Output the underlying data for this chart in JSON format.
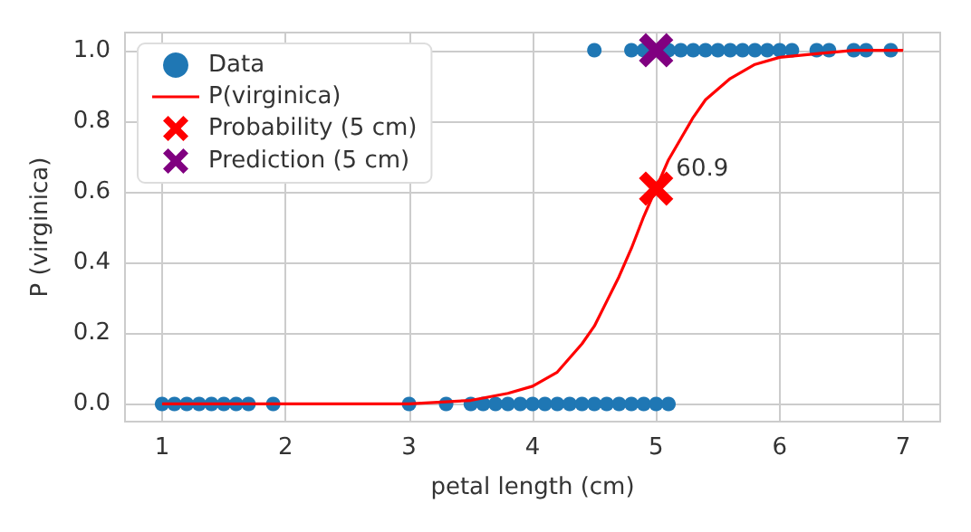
{
  "chart_data": {
    "type": "scatter",
    "xlabel": "petal length (cm)",
    "ylabel": "P (virginica)",
    "xlim": [
      0.7,
      7.3
    ],
    "ylim": [
      -0.05,
      1.05
    ],
    "xticks": [
      1,
      2,
      3,
      4,
      5,
      6,
      7
    ],
    "yticks": [
      {
        "value": 0,
        "label": "0.0"
      },
      {
        "value": 0.2,
        "label": "0.2"
      },
      {
        "value": 0.4,
        "label": "0.4"
      },
      {
        "value": 0.6,
        "label": "0.6"
      },
      {
        "value": 0.8,
        "label": "0.8"
      },
      {
        "value": 1,
        "label": "1.0"
      }
    ],
    "grid": true,
    "legend": "top left",
    "series": [
      {
        "name": "Data",
        "marker": "circle",
        "color": "#1f77b4",
        "x": [
          1.0,
          1.1,
          1.2,
          1.3,
          1.4,
          1.5,
          1.6,
          1.7,
          1.9,
          3.0,
          3.3,
          3.5,
          3.6,
          3.7,
          3.8,
          3.9,
          4.0,
          4.1,
          4.2,
          4.3,
          4.4,
          4.5,
          4.6,
          4.7,
          4.8,
          4.9,
          5.0,
          5.1,
          4.5,
          4.8,
          4.9,
          5.0,
          5.1,
          5.2,
          5.3,
          5.4,
          5.5,
          5.6,
          5.7,
          5.8,
          5.9,
          6.0,
          6.1,
          6.3,
          6.4,
          6.6,
          6.7,
          6.9
        ],
        "values": [
          0,
          0,
          0,
          0,
          0,
          0,
          0,
          0,
          0,
          0,
          0,
          0,
          0,
          0,
          0,
          0,
          0,
          0,
          0,
          0,
          0,
          0,
          0,
          0,
          0,
          0,
          0,
          0,
          1,
          1,
          1,
          null,
          1,
          1,
          1,
          1,
          1,
          1,
          1,
          1,
          1,
          1,
          1,
          1,
          1,
          1,
          1,
          1
        ]
      },
      {
        "name": "P(virginica)",
        "type": "line",
        "color": "#ff0000",
        "x": [
          1.0,
          2.0,
          3.0,
          3.5,
          3.8,
          4.0,
          4.2,
          4.4,
          4.5,
          4.6,
          4.7,
          4.8,
          4.9,
          5.0,
          5.1,
          5.2,
          5.3,
          5.4,
          5.6,
          5.8,
          6.0,
          6.3,
          6.6,
          7.0
        ],
        "values": [
          0,
          0,
          0,
          0.01,
          0.03,
          0.05,
          0.09,
          0.17,
          0.22,
          0.29,
          0.36,
          0.44,
          0.53,
          0.61,
          0.69,
          0.75,
          0.81,
          0.86,
          0.92,
          0.96,
          0.98,
          0.99,
          1.0,
          1.0
        ]
      },
      {
        "name": "Probability (5 cm)",
        "marker": "cross",
        "color": "#ff0000",
        "x": [
          5
        ],
        "values": [
          0.609
        ]
      },
      {
        "name": "Prediction (5 cm)",
        "marker": "cross",
        "color": "#800080",
        "x": [
          5
        ],
        "values": [
          1
        ]
      }
    ],
    "annotations": [
      {
        "text": "60.9",
        "x": 5,
        "y": 0.609
      }
    ]
  }
}
